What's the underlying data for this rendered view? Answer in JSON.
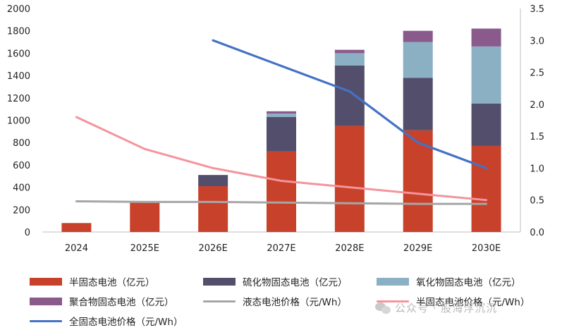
{
  "chart_data": {
    "type": "bar",
    "stacked": true,
    "categories": [
      "2024",
      "2025E",
      "2026E",
      "2027E",
      "2028E",
      "2029E",
      "2030E"
    ],
    "series": [
      {
        "name": "半固态电池（亿元）",
        "kind": "bar",
        "axis": "left",
        "color": "#C8412A",
        "values": [
          80,
          270,
          410,
          720,
          950,
          910,
          770
        ]
      },
      {
        "name": "硫化物固态电池（亿元）",
        "kind": "bar",
        "axis": "left",
        "color": "#544E6D",
        "values": [
          0,
          0,
          100,
          310,
          540,
          470,
          380
        ]
      },
      {
        "name": "氧化物固态电池（亿元）",
        "kind": "bar",
        "axis": "left",
        "color": "#8BB0C4",
        "values": [
          0,
          0,
          0,
          30,
          110,
          320,
          510
        ]
      },
      {
        "name": "聚合物固态电池（亿元）",
        "kind": "bar",
        "axis": "left",
        "color": "#8A5A8C",
        "values": [
          0,
          0,
          0,
          20,
          30,
          100,
          160
        ]
      },
      {
        "name": "液态电池价格（元/Wh）",
        "kind": "line",
        "axis": "right",
        "color": "#A6A6A6",
        "values": [
          0.48,
          0.47,
          0.47,
          0.46,
          0.45,
          0.44,
          0.44
        ]
      },
      {
        "name": "半固态电池价格（元/Wh）",
        "kind": "line",
        "axis": "right",
        "color": "#F4949C",
        "values": [
          1.8,
          1.3,
          1.0,
          0.8,
          0.7,
          0.6,
          0.5
        ]
      },
      {
        "name": "全固态电池价格（元/Wh）",
        "kind": "line",
        "axis": "right",
        "color": "#4472C4",
        "values": [
          null,
          null,
          3.0,
          null,
          2.2,
          1.4,
          1.0
        ]
      }
    ],
    "ylim": [
      0,
      2000
    ],
    "yticks": [
      "0",
      "200",
      "400",
      "600",
      "800",
      "1000",
      "1200",
      "1400",
      "1600",
      "1800",
      "2000"
    ],
    "y2lim": [
      0,
      3.5
    ],
    "y2ticks": [
      "0.0",
      "0.5",
      "1.0",
      "1.5",
      "2.0",
      "2.5",
      "3.0",
      "3.5"
    ],
    "grid": false,
    "legend_position": "bottom"
  },
  "watermark": {
    "text": "公众号 · 股海浮沉沉"
  }
}
